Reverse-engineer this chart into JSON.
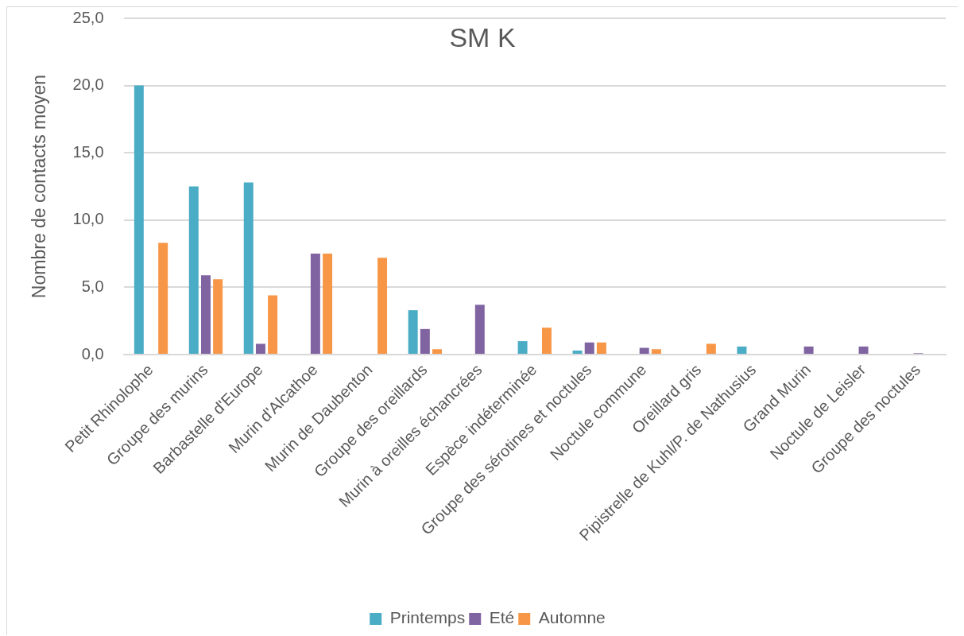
{
  "chart_data": {
    "type": "bar",
    "title": "SM K",
    "ylabel": "Nombre de contacts moyen",
    "categories": [
      "Petit Rhinolophe",
      "Groupe des murins",
      "Barbastelle d'Europe",
      "Murin d'Alcathoe",
      "Murin de Daubenton",
      "Groupe des oreillards",
      "Murin à oreilles échancrées",
      "Espèce indéterminée",
      "Groupe des sérotines et noctules",
      "Noctule commune",
      "Oreillard gris",
      "Pipistrelle de Kuhl/P. de Nathusius",
      "Grand Murin",
      "Noctule de Leisler",
      "Groupe des noctules"
    ],
    "series": [
      {
        "name": "Printemps",
        "color": "#4bacc6",
        "values": [
          20.0,
          12.5,
          12.8,
          null,
          null,
          3.3,
          null,
          1.0,
          0.3,
          null,
          null,
          0.6,
          null,
          null,
          null
        ]
      },
      {
        "name": "Eté",
        "color": "#8064a2",
        "values": [
          null,
          5.9,
          0.8,
          7.5,
          null,
          1.9,
          3.7,
          null,
          0.9,
          0.5,
          null,
          null,
          0.6,
          0.6,
          0.1
        ]
      },
      {
        "name": "Automne",
        "color": "#f79646",
        "values": [
          8.3,
          5.6,
          4.4,
          7.5,
          7.2,
          0.4,
          null,
          2.0,
          0.9,
          0.4,
          0.8,
          null,
          null,
          null,
          null
        ]
      }
    ],
    "ylim": [
      0,
      25
    ],
    "yticks": [
      {
        "value": 0,
        "label": "0,0"
      },
      {
        "value": 5,
        "label": "5,0"
      },
      {
        "value": 10,
        "label": "10,0"
      },
      {
        "value": 15,
        "label": "15,0"
      },
      {
        "value": 20,
        "label": "20,0"
      },
      {
        "value": 25,
        "label": "25,0"
      }
    ],
    "grid": "y",
    "legend": "bottom"
  }
}
